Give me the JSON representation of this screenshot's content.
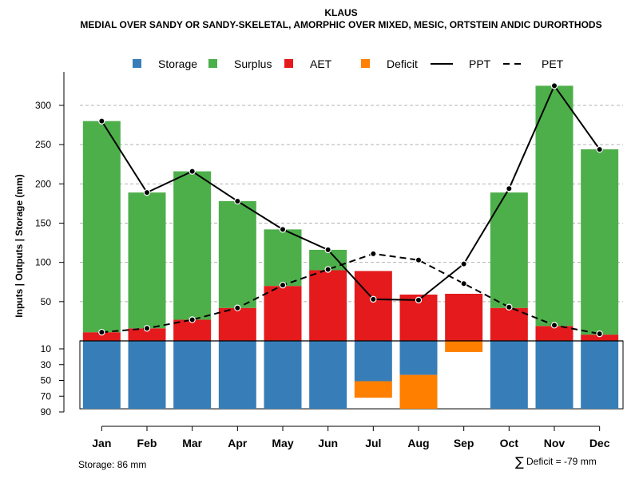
{
  "chart_data": {
    "type": "bar",
    "title": "KLAUS",
    "subtitle": "MEDIAL OVER SANDY OR SANDY-SKELETAL, AMORPHIC OVER MIXED, MESIC, ORTSTEIN ANDIC DURORTHODS",
    "ylabel": "Inputs | Outputs | Storage    (mm)",
    "categories": [
      "Jan",
      "Feb",
      "Mar",
      "Apr",
      "May",
      "Jun",
      "Jul",
      "Aug",
      "Sep",
      "Oct",
      "Nov",
      "Dec"
    ],
    "upper_axis": {
      "ylim": [
        0,
        330
      ],
      "ticks": [
        50,
        100,
        150,
        200,
        250,
        300
      ],
      "gridlines": true
    },
    "lower_axis": {
      "ylim": [
        0,
        90
      ],
      "ticks": [
        10,
        30,
        50,
        70,
        90
      ],
      "labels": [
        "10",
        "30",
        "50",
        "70",
        "90"
      ]
    },
    "series": [
      {
        "name": "AET",
        "color": "#E41A1C",
        "values": [
          11,
          16,
          27,
          42,
          70,
          90,
          89,
          59,
          60,
          42,
          19,
          8
        ]
      },
      {
        "name": "Surplus",
        "color": "#4DAF4A",
        "values": [
          269,
          173,
          189,
          136,
          72,
          26,
          0,
          0,
          0,
          147,
          306,
          236
        ]
      },
      {
        "name": "PPT",
        "color": "#000000",
        "line": "solid",
        "values": [
          280,
          189,
          216,
          178,
          142,
          116,
          53,
          52,
          98,
          194,
          325,
          244
        ]
      },
      {
        "name": "PET",
        "color": "#000000",
        "line": "dashed",
        "values": [
          11,
          16,
          27,
          42,
          71,
          91,
          111,
          103,
          73,
          43,
          20,
          9
        ]
      },
      {
        "name": "Storage",
        "color": "#377EB8",
        "values": [
          86,
          86,
          86,
          86,
          86,
          86,
          51,
          43,
          0,
          86,
          86,
          86
        ]
      },
      {
        "name": "Deficit",
        "color": "#FF7F00",
        "values": [
          0,
          0,
          0,
          0,
          0,
          0,
          21,
          43,
          14,
          0,
          0,
          0
        ]
      }
    ],
    "storage_capacity": 86,
    "legend": [
      {
        "name": "Storage",
        "kind": "box",
        "color": "#377EB8"
      },
      {
        "name": "Surplus",
        "kind": "box",
        "color": "#4DAF4A"
      },
      {
        "name": "AET",
        "kind": "box",
        "color": "#E41A1C"
      },
      {
        "name": "Deficit",
        "kind": "box",
        "color": "#FF7F00"
      },
      {
        "name": "PPT",
        "kind": "line-solid",
        "color": "#000000"
      },
      {
        "name": "PET",
        "kind": "line-dashed",
        "color": "#000000"
      }
    ],
    "legend_position": "top"
  },
  "footer": {
    "storage_text": "Storage: 86 mm",
    "sigma": "∑",
    "deficit_text": "Deficit = -79 mm"
  }
}
